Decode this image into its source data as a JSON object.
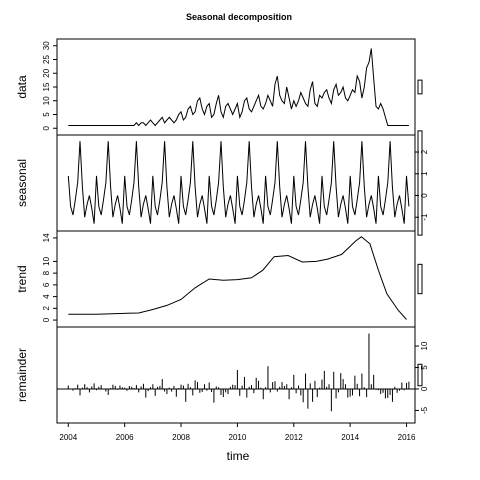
{
  "chart_data": {
    "type": "line",
    "title": "Seasonal decomposition",
    "xlabel": "time",
    "x_ticks": [
      "2004",
      "2006",
      "2008",
      "2010",
      "2012",
      "2014",
      "2016"
    ],
    "xlim": [
      2003.6,
      2016.3
    ],
    "time_start": 2004.0,
    "frequency": 12,
    "panels": [
      {
        "name": "data",
        "ylabel": "data",
        "ylim": [
          -1,
          31
        ],
        "y_ticks": [
          0,
          5,
          10,
          15,
          20,
          25,
          30
        ],
        "y_tick_labels": [
          "0",
          "5",
          "10",
          "15",
          "20",
          "25",
          "30"
        ],
        "y_axis_side": "left",
        "style": "line",
        "values": [
          1,
          1,
          1,
          1,
          1,
          1,
          1,
          1,
          1,
          1,
          1,
          1,
          1,
          1,
          1,
          1,
          1,
          1,
          1,
          1,
          1,
          1,
          1,
          1,
          1,
          1,
          1,
          1,
          1,
          2,
          1,
          2,
          2,
          1,
          2,
          3,
          2,
          1,
          2,
          3,
          4,
          2,
          3,
          4,
          3,
          2,
          3,
          5,
          6,
          3,
          4,
          7,
          8,
          5,
          6,
          10,
          11,
          7,
          5,
          8,
          9,
          4,
          5,
          9,
          12,
          6,
          4,
          8,
          9,
          7,
          5,
          7,
          9,
          4,
          6,
          10,
          11,
          7,
          6,
          8,
          10,
          12,
          8,
          7,
          9,
          12,
          10,
          8,
          16,
          19,
          12,
          10,
          9,
          15,
          11,
          7,
          10,
          8,
          10,
          13,
          11,
          9,
          8,
          14,
          17,
          9,
          8,
          12,
          11,
          13,
          14,
          11,
          9,
          14,
          16,
          12,
          13,
          15,
          11,
          10,
          12,
          14,
          13,
          19,
          17,
          11,
          15,
          22,
          24,
          29,
          18,
          8,
          7,
          9,
          7,
          4,
          1,
          1,
          1,
          1,
          1,
          1,
          1,
          1,
          1,
          1
        ]
      },
      {
        "name": "seasonal",
        "ylabel": "seasonal",
        "ylim": [
          -1.45,
          2.6
        ],
        "y_ticks": [
          -1,
          0,
          1,
          2
        ],
        "y_tick_labels": [
          "-1",
          "0",
          "1",
          "2"
        ],
        "y_axis_side": "right",
        "style": "line",
        "pattern": [
          0.9,
          -0.5,
          -0.9,
          -0.2,
          0.6,
          2.5,
          0.4,
          -1.0,
          -0.4,
          0.0,
          -0.6,
          -1.3
        ],
        "end_month_index": 11
      },
      {
        "name": "trend",
        "ylabel": "trend",
        "ylim": [
          -0.5,
          14.5
        ],
        "y_ticks": [
          0,
          2,
          4,
          6,
          8,
          10,
          14
        ],
        "y_tick_labels": [
          "0",
          "2",
          "4",
          "6",
          "8",
          "10",
          "14"
        ],
        "y_axis_side": "left",
        "style": "line",
        "x": [
          2004.0,
          2005.0,
          2005.7,
          2006.5,
          2007.0,
          2007.5,
          2008.0,
          2008.5,
          2009.0,
          2009.5,
          2010.0,
          2010.5,
          2010.9,
          2011.3,
          2011.8,
          2012.3,
          2012.8,
          2013.2,
          2013.7,
          2014.2,
          2014.4,
          2014.7,
          2015.0,
          2015.3,
          2015.7,
          2016.0
        ],
        "y": [
          1.0,
          1.0,
          1.1,
          1.2,
          1.8,
          2.5,
          3.5,
          5.5,
          7.0,
          6.8,
          6.9,
          7.2,
          8.5,
          10.8,
          11.0,
          9.9,
          10.0,
          10.4,
          11.2,
          13.5,
          14.2,
          13.0,
          8.5,
          4.5,
          1.7,
          0.1
        ]
      },
      {
        "name": "remainder",
        "ylabel": "remainder",
        "ylim": [
          -7,
          13.5
        ],
        "y_ticks": [
          -5,
          0,
          5,
          10
        ],
        "y_tick_labels": [
          "-5",
          "0",
          "5",
          "10"
        ],
        "y_axis_side": "right",
        "style": "bars",
        "values": [
          0.8,
          0.1,
          -0.4,
          0.2,
          1.0,
          -1.5,
          0.3,
          1.1,
          0.4,
          -0.8,
          0.6,
          1.3,
          -0.3,
          0.5,
          0.9,
          0.1,
          -0.6,
          -1.4,
          0.2,
          1.0,
          0.7,
          -0.2,
          0.8,
          0.4,
          0.3,
          -0.4,
          0.7,
          0.5,
          0.2,
          0.9,
          -0.8,
          0.6,
          1.2,
          -2.0,
          -0.5,
          0.4,
          1.1,
          -1.6,
          0.5,
          0.7,
          2.3,
          -0.6,
          -1.2,
          0.3,
          -0.6,
          0.7,
          -1.8,
          0.2,
          1.0,
          0.8,
          -3.0,
          1.2,
          0.4,
          -1.5,
          2.0,
          1.6,
          -0.9,
          -0.7,
          1.1,
          -0.4,
          1.5,
          -0.7,
          -3.2,
          0.6,
          0.4,
          -1.4,
          -1.9,
          -0.8,
          -1.2,
          0.5,
          1.0,
          0.9,
          4.4,
          -1.6,
          0.8,
          2.8,
          -2.0,
          0.5,
          0.9,
          -1.0,
          2.6,
          1.9,
          0.3,
          -2.4,
          0.4,
          5.3,
          -0.8,
          1.6,
          1.8,
          -0.6,
          0.5,
          1.6,
          0.7,
          1.1,
          -2.4,
          0.4,
          3.3,
          -1.0,
          0.8,
          -1.5,
          -3.1,
          3.6,
          -4.6,
          1.3,
          -3.0,
          1.9,
          -1.9,
          0.3,
          2.2,
          4.2,
          0.5,
          1.1,
          -5.2,
          4.0,
          -2.2,
          -0.8,
          3.7,
          2.3,
          1.1,
          -2.0,
          -1.8,
          -1.5,
          3.1,
          1.2,
          -1.7,
          3.6,
          0.4,
          -1.9,
          12.9,
          1.1,
          3.3,
          -0.2,
          -0.3,
          -1.2,
          -0.9,
          -2.2,
          -2.1,
          -1.4,
          -3.0,
          0.5,
          -0.9,
          -0.4,
          1.5,
          -0.3,
          1.4,
          1.7
        ]
      }
    ],
    "scale_bar_heights_in_data_units": [
      5.0,
      4.8,
      5.0,
      5.0
    ]
  }
}
